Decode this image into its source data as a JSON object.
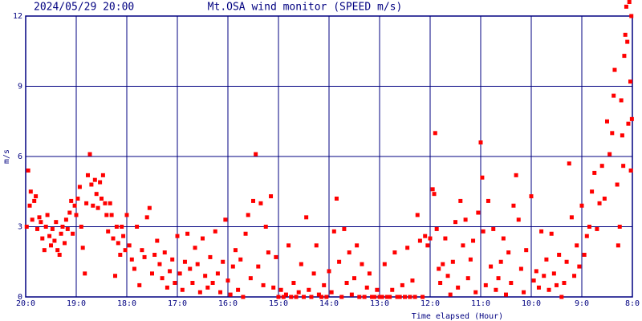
{
  "chart_data": {
    "type": "scatter",
    "title": "Mt.OSA wind monitor (SPEED m/s)",
    "subtitle": "2024/05/29 20:00",
    "x_label": "Time elapsed (Hour)",
    "y_label": "m/s",
    "color": "#ff0000",
    "grid": true,
    "xlim": [
      0,
      12
    ],
    "ylim": [
      0,
      12
    ],
    "xticks": [
      {
        "value": 0,
        "label": "20:0"
      },
      {
        "value": 1,
        "label": "19:0"
      },
      {
        "value": 2,
        "label": "18:0"
      },
      {
        "value": 3,
        "label": "17:0"
      },
      {
        "value": 4,
        "label": "16:0"
      },
      {
        "value": 5,
        "label": "15:0"
      },
      {
        "value": 6,
        "label": "14:0"
      },
      {
        "value": 7,
        "label": "13:0"
      },
      {
        "value": 8,
        "label": "12:0"
      },
      {
        "value": 9,
        "label": "11:0"
      },
      {
        "value": 10,
        "label": "10:0"
      },
      {
        "value": 11,
        "label": "9:0"
      },
      {
        "value": 12,
        "label": "8:0"
      }
    ],
    "yticks": [
      0,
      3,
      6,
      9,
      12
    ],
    "x": [
      0.02,
      0.05,
      0.08,
      0.1,
      0.13,
      0.17,
      0.2,
      0.23,
      0.27,
      0.3,
      0.33,
      0.37,
      0.4,
      0.43,
      0.47,
      0.5,
      0.53,
      0.57,
      0.6,
      0.63,
      0.67,
      0.7,
      0.73,
      0.77,
      0.8,
      0.83,
      0.87,
      0.9,
      0.93,
      0.97,
      1.0,
      1.03,
      1.07,
      1.1,
      1.13,
      1.17,
      1.2,
      1.23,
      1.27,
      1.3,
      1.33,
      1.37,
      1.4,
      1.43,
      1.47,
      1.5,
      1.53,
      1.57,
      1.6,
      1.63,
      1.67,
      1.7,
      1.73,
      1.77,
      1.8,
      1.83,
      1.87,
      1.9,
      1.93,
      1.97,
      2.0,
      2.05,
      2.1,
      2.15,
      2.2,
      2.25,
      2.3,
      2.35,
      2.4,
      2.45,
      2.5,
      2.55,
      2.6,
      2.65,
      2.7,
      2.75,
      2.8,
      2.85,
      2.9,
      2.95,
      3.0,
      3.05,
      3.1,
      3.15,
      3.2,
      3.25,
      3.3,
      3.35,
      3.4,
      3.45,
      3.5,
      3.55,
      3.6,
      3.65,
      3.7,
      3.75,
      3.8,
      3.85,
      3.9,
      3.95,
      4.0,
      4.05,
      4.1,
      4.15,
      4.2,
      4.25,
      4.3,
      4.35,
      4.4,
      4.45,
      4.5,
      4.55,
      4.6,
      4.65,
      4.7,
      4.75,
      4.8,
      4.85,
      4.9,
      4.95,
      5.0,
      5.05,
      5.1,
      5.15,
      5.2,
      5.25,
      5.3,
      5.35,
      5.4,
      5.45,
      5.5,
      5.55,
      5.6,
      5.65,
      5.7,
      5.75,
      5.8,
      5.85,
      5.9,
      5.95,
      6.0,
      6.05,
      6.1,
      6.15,
      6.2,
      6.25,
      6.3,
      6.35,
      6.4,
      6.45,
      6.5,
      6.55,
      6.6,
      6.65,
      6.7,
      6.75,
      6.8,
      6.85,
      6.9,
      6.95,
      7.0,
      7.05,
      7.1,
      7.15,
      7.2,
      7.25,
      7.3,
      7.35,
      7.4,
      7.45,
      7.5,
      7.55,
      7.6,
      7.65,
      7.7,
      7.75,
      7.8,
      7.85,
      7.9,
      7.95,
      8.0,
      8.05,
      8.08,
      8.1,
      8.13,
      8.17,
      8.2,
      8.25,
      8.3,
      8.35,
      8.4,
      8.45,
      8.5,
      8.55,
      8.6,
      8.65,
      8.7,
      8.75,
      8.8,
      8.85,
      8.9,
      8.95,
      9.0,
      9.03,
      9.05,
      9.1,
      9.15,
      9.2,
      9.25,
      9.3,
      9.35,
      9.4,
      9.45,
      9.5,
      9.55,
      9.6,
      9.65,
      9.7,
      9.75,
      9.8,
      9.85,
      9.9,
      10.0,
      10.05,
      10.1,
      10.15,
      10.2,
      10.25,
      10.3,
      10.35,
      10.4,
      10.45,
      10.5,
      10.55,
      10.6,
      10.65,
      10.7,
      10.75,
      10.8,
      10.85,
      10.9,
      10.95,
      11.0,
      11.05,
      11.1,
      11.15,
      11.2,
      11.25,
      11.3,
      11.35,
      11.4,
      11.45,
      11.5,
      11.55,
      11.6,
      11.63,
      11.65,
      11.7,
      11.72,
      11.75,
      11.78,
      11.8,
      11.82,
      11.84,
      11.86,
      11.88,
      11.9,
      11.92,
      11.94,
      11.96,
      11.97,
      11.98,
      11.99
    ],
    "values": [
      3.0,
      5.4,
      3.9,
      4.5,
      3.3,
      4.1,
      4.3,
      2.9,
      3.4,
      3.2,
      2.5,
      2.0,
      3.0,
      3.5,
      2.6,
      2.2,
      2.9,
      2.4,
      3.2,
      2.0,
      1.8,
      2.7,
      3.0,
      2.3,
      3.3,
      2.9,
      3.6,
      4.1,
      2.7,
      3.9,
      3.5,
      4.2,
      4.7,
      3.0,
      2.1,
      1.0,
      4.0,
      5.2,
      6.1,
      4.8,
      3.9,
      5.0,
      4.4,
      3.8,
      4.9,
      4.2,
      5.2,
      4.0,
      3.5,
      2.8,
      4.0,
      3.5,
      2.5,
      0.9,
      3.0,
      2.3,
      1.8,
      3.0,
      2.6,
      2.0,
      3.5,
      2.2,
      1.6,
      1.2,
      3.0,
      0.5,
      2.0,
      1.7,
      3.4,
      3.8,
      1.0,
      1.8,
      2.4,
      1.4,
      0.8,
      1.9,
      0.4,
      1.1,
      1.6,
      0.6,
      2.6,
      1.0,
      0.3,
      1.5,
      2.7,
      1.2,
      0.6,
      2.1,
      1.4,
      0.2,
      2.5,
      0.9,
      0.4,
      1.7,
      0.6,
      2.8,
      1.0,
      0.2,
      1.5,
      3.3,
      0.7,
      0.1,
      1.3,
      2.0,
      0.3,
      1.6,
      0.0,
      2.7,
      3.5,
      0.8,
      4.1,
      6.1,
      1.3,
      4.0,
      0.5,
      3.0,
      1.9,
      4.3,
      0.4,
      1.7,
      0.0,
      0.3,
      0.0,
      0.1,
      2.2,
      0.0,
      0.6,
      0.0,
      0.2,
      1.4,
      0.0,
      3.4,
      0.3,
      0.0,
      1.0,
      2.2,
      0.1,
      0.0,
      0.5,
      0.0,
      1.1,
      0.2,
      2.8,
      4.2,
      1.5,
      0.0,
      2.9,
      0.6,
      1.9,
      0.1,
      0.8,
      2.2,
      0.0,
      1.4,
      0.0,
      0.4,
      1.0,
      0.0,
      0.0,
      0.3,
      0.0,
      0.0,
      1.4,
      0.0,
      0.0,
      0.3,
      1.9,
      0.0,
      0.0,
      0.5,
      0.0,
      2.1,
      0.0,
      0.7,
      0.0,
      3.5,
      2.4,
      0.0,
      2.6,
      2.2,
      2.5,
      4.6,
      4.4,
      7.0,
      2.9,
      1.2,
      0.6,
      1.4,
      2.5,
      0.9,
      0.1,
      1.5,
      3.2,
      0.4,
      4.1,
      2.2,
      3.3,
      0.8,
      1.6,
      2.4,
      0.2,
      3.6,
      6.6,
      5.1,
      2.8,
      0.5,
      4.1,
      1.3,
      2.9,
      0.3,
      0.8,
      1.5,
      2.5,
      0.1,
      1.9,
      0.6,
      3.9,
      5.2,
      3.3,
      1.2,
      0.2,
      2.0,
      4.3,
      0.7,
      1.1,
      0.4,
      2.8,
      0.9,
      1.6,
      0.3,
      2.7,
      1.0,
      0.5,
      1.8,
      0.0,
      0.6,
      1.5,
      5.7,
      3.4,
      0.9,
      2.2,
      1.3,
      3.9,
      1.8,
      2.6,
      3.0,
      4.5,
      5.3,
      2.9,
      4.0,
      5.6,
      4.2,
      7.5,
      6.1,
      7.0,
      8.6,
      9.7,
      4.8,
      2.2,
      3.0,
      8.4,
      6.9,
      5.6,
      10.3,
      11.2,
      12.4,
      10.9,
      7.4,
      12.6,
      9.2,
      5.4,
      12.0,
      7.6
    ]
  }
}
